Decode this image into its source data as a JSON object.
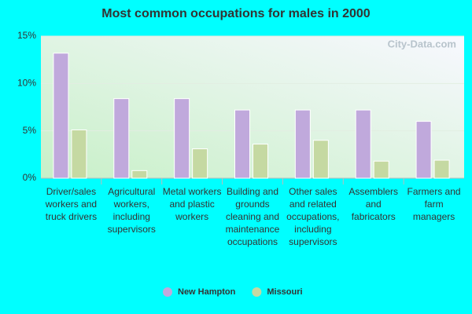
{
  "chart_data": {
    "type": "bar",
    "title": "Most common occupations for males in 2000",
    "watermark": "City-Data.com",
    "categories": [
      "Driver/sales workers and truck drivers",
      "Agricultural workers, including supervisors",
      "Metal workers and plastic workers",
      "Building and grounds cleaning and maintenance occupations",
      "Other sales and related occupations, including supervisors",
      "Assemblers and fabricators",
      "Farmers and farm managers"
    ],
    "series": [
      {
        "name": "New Hampton",
        "color": "#c0a9dc",
        "values": [
          13.2,
          8.4,
          8.4,
          7.2,
          7.2,
          7.2,
          6.0
        ]
      },
      {
        "name": "Missouri",
        "color": "#c5d9a2",
        "values": [
          5.1,
          0.8,
          3.1,
          3.6,
          4.0,
          1.8,
          1.9
        ]
      }
    ],
    "ylim": [
      0,
      15
    ],
    "yticks": [
      {
        "value": 0,
        "label": "0%"
      },
      {
        "value": 5,
        "label": "5%"
      },
      {
        "value": 10,
        "label": "10%"
      },
      {
        "value": 15,
        "label": "15%"
      }
    ],
    "grid": true,
    "legend": "bottom"
  }
}
